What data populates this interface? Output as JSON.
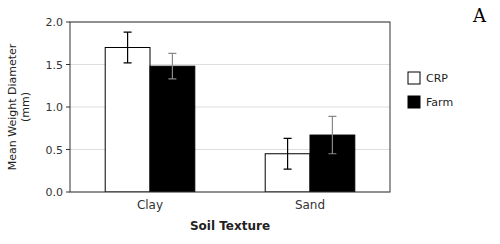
{
  "chart_data": {
    "type": "bar",
    "categories": [
      "Clay",
      "Sand"
    ],
    "series": [
      {
        "name": "CRP",
        "color": "#ffffff",
        "values": [
          1.7,
          0.45
        ],
        "errors": [
          0.18,
          0.18
        ]
      },
      {
        "name": "Farm",
        "color": "#000000",
        "values": [
          1.48,
          0.67
        ],
        "errors": [
          0.15,
          0.22
        ]
      }
    ],
    "x_label": "Soil Texture",
    "y_label": "Mean Weight Diameter\n(mm)",
    "ylim": [
      0.0,
      2.0
    ],
    "yticks": [
      {
        "value": 0.0,
        "label": "0.0"
      },
      0.5,
      {
        "value": 1.0,
        "label": "1.0"
      },
      1.5,
      {
        "value": 2.0,
        "label": "2.0"
      }
    ],
    "grid": true,
    "legend": "right",
    "annotations": [
      "A"
    ]
  }
}
